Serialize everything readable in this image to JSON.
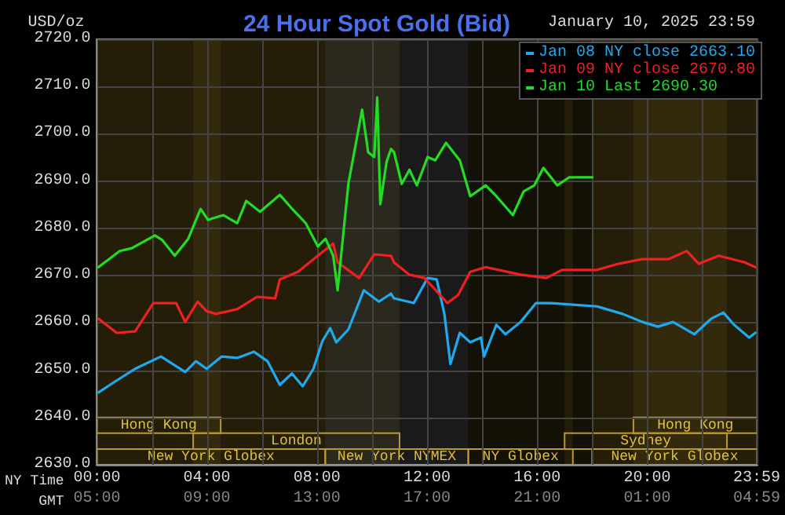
{
  "chart_data": {
    "type": "line",
    "title": "24 Hour Spot Gold (Bid)",
    "subtitle": "January 10, 2025 23:59",
    "ylabel": "USD/oz",
    "xlabel": "NY Time",
    "x2label": "GMT",
    "xlim": [
      0,
      24
    ],
    "xticks": [
      {
        "value": 0,
        "label": "00:00"
      },
      {
        "value": 2,
        "label": null
      },
      {
        "value": 4,
        "label": "04:00"
      },
      {
        "value": 6,
        "label": null
      },
      {
        "value": 8,
        "label": "08:00"
      },
      {
        "value": 10,
        "label": null
      },
      {
        "value": 12,
        "label": "12:00"
      },
      {
        "value": 14,
        "label": null
      },
      {
        "value": 16,
        "label": "16:00"
      },
      {
        "value": 18,
        "label": null
      },
      {
        "value": 20,
        "label": "20:00"
      },
      {
        "value": 22,
        "label": null
      },
      {
        "value": 23.98,
        "label": "23:59"
      }
    ],
    "x2lim": [
      "2025-01-10T05:00",
      "2025-01-11T05:00"
    ],
    "x2ticks": [
      {
        "value": "2025-01-10T05:00",
        "label": "05:00"
      },
      {
        "value": "2025-01-10T09:00",
        "label": "09:00"
      },
      {
        "value": "2025-01-10T13:00",
        "label": "13:00"
      },
      {
        "value": "2025-01-10T17:00",
        "label": "17:00"
      },
      {
        "value": "2025-01-10T21:00",
        "label": "21:00"
      },
      {
        "value": "2025-01-11T01:00",
        "label": "01:00"
      },
      {
        "value": "2025-01-11T04:59",
        "label": "04:59"
      }
    ],
    "ylim": [
      2630,
      2720
    ],
    "yticks": [
      {
        "value": 2630,
        "label": "2630.0"
      },
      {
        "value": 2640,
        "label": "2640.0"
      },
      {
        "value": 2650,
        "label": "2650.0"
      },
      {
        "value": 2660,
        "label": "2660.0"
      },
      {
        "value": 2670,
        "label": "2670.0"
      },
      {
        "value": 2680,
        "label": "2680.0"
      },
      {
        "value": 2690,
        "label": "2690.0"
      },
      {
        "value": 2700,
        "label": "2700.0"
      },
      {
        "value": 2710,
        "label": "2710.0"
      },
      {
        "value": 2720,
        "label": "2720.0"
      }
    ],
    "grid": true,
    "legend": "top right",
    "marker": "none",
    "line_style": "solid",
    "bands": [
      {
        "axis": "x",
        "from": 0,
        "to": 8.3,
        "label": "New York Globex",
        "color": "#b89a30"
      },
      {
        "axis": "x",
        "from": 13.5,
        "to": 17.3,
        "label": "NY Globex",
        "color": "#b89a30"
      },
      {
        "axis": "x",
        "from": 18,
        "to": 24,
        "label": "New York Globex",
        "color": "#b89a30"
      },
      {
        "axis": "x",
        "from": 3.5,
        "to": 11,
        "label": "London",
        "color": "#b89a30"
      },
      {
        "axis": "x",
        "from": 17,
        "to": 22.9,
        "label": "Sydney",
        "color": "#b89a30"
      },
      {
        "axis": "x",
        "from": 0,
        "to": 4.5,
        "label": "Hong Kong",
        "color": "#b89a30"
      },
      {
        "axis": "x",
        "from": 19.5,
        "to": 24,
        "label": "Hong Kong",
        "color": "#b89a30"
      },
      {
        "axis": "x",
        "from": 8.3,
        "to": 13.5,
        "label": "New York NYMEX",
        "color": "#ffffff"
      }
    ],
    "series": [
      {
        "name": "Jan 08 NY close 2663.10",
        "color": "#20aaee",
        "x": [
          0.06,
          0.66,
          1.39,
          2.33,
          3.21,
          3.6,
          3.99,
          4.54,
          5.1,
          5.71,
          6.2,
          6.65,
          7.09,
          7.48,
          7.87,
          8.2,
          8.48,
          8.7,
          9.14,
          9.7,
          10.25,
          10.69,
          10.8,
          11.52,
          12.02,
          12.35,
          12.63,
          12.85,
          13.19,
          13.57,
          13.96,
          14.07,
          14.52,
          14.85,
          15.4,
          15.96,
          16.51,
          18.17,
          19.11,
          19.83,
          20.39,
          20.94,
          21.72,
          22.33,
          22.77,
          23.16,
          23.71,
          23.93
        ],
        "values": [
          2645.3,
          2647.6,
          2650.3,
          2652.9,
          2649.6,
          2651.9,
          2650.3,
          2652.9,
          2652.6,
          2653.9,
          2651.9,
          2646.9,
          2649.3,
          2646.6,
          2650.3,
          2656.2,
          2658.9,
          2655.9,
          2658.6,
          2666.9,
          2664.5,
          2666.2,
          2665.2,
          2664.2,
          2669.5,
          2669.2,
          2661.9,
          2651.3,
          2657.9,
          2655.9,
          2656.9,
          2652.9,
          2659.6,
          2657.6,
          2660.2,
          2664.2,
          2664.2,
          2663.5,
          2661.9,
          2660.2,
          2659.2,
          2660.2,
          2657.6,
          2660.9,
          2662.2,
          2659.6,
          2656.9,
          2657.9
        ]
      },
      {
        "name": "Jan 09 NY close 2670.80",
        "color": "#ee2020",
        "x": [
          0.06,
          0.72,
          1.39,
          2.05,
          2.88,
          3.21,
          3.66,
          3.99,
          4.32,
          5.1,
          5.82,
          6.48,
          6.65,
          7.31,
          8.03,
          8.59,
          8.75,
          9.53,
          10.08,
          10.69,
          10.8,
          11.36,
          11.91,
          12.74,
          13.13,
          13.57,
          14.13,
          15.4,
          16.34,
          16.9,
          18.17,
          18.95,
          19.83,
          20.78,
          21.44,
          21.88,
          22.6,
          23.55,
          23.93
        ],
        "values": [
          2660.9,
          2657.9,
          2658.2,
          2664.2,
          2664.2,
          2660.2,
          2664.5,
          2662.5,
          2661.9,
          2662.9,
          2665.5,
          2665.2,
          2669.2,
          2670.8,
          2674.2,
          2676.8,
          2672.8,
          2669.5,
          2674.5,
          2674.2,
          2672.8,
          2670.2,
          2669.5,
          2664.2,
          2665.9,
          2670.8,
          2671.8,
          2670.2,
          2669.5,
          2671.2,
          2671.2,
          2672.5,
          2673.5,
          2673.5,
          2675.2,
          2672.5,
          2674.2,
          2672.8,
          2671.8
        ]
      },
      {
        "name": "Jan 10 Last 2690.30",
        "color": "#22dd22",
        "x": [
          0.06,
          0.83,
          1.27,
          2.11,
          2.38,
          2.83,
          3.32,
          3.77,
          4.04,
          4.6,
          5.1,
          5.43,
          5.93,
          6.65,
          7.04,
          7.59,
          8.03,
          8.31,
          8.59,
          8.75,
          9.14,
          9.64,
          9.86,
          10.08,
          10.19,
          10.3,
          10.53,
          10.69,
          10.8,
          11.08,
          11.36,
          11.63,
          12.02,
          12.3,
          12.69,
          13.19,
          13.57,
          14.13,
          14.52,
          15.12,
          15.51,
          15.9,
          16.23,
          16.73,
          17.17,
          18.01
        ],
        "values": [
          2671.8,
          2675.2,
          2675.8,
          2678.5,
          2677.5,
          2674.2,
          2677.8,
          2684.1,
          2681.8,
          2682.8,
          2681.1,
          2685.8,
          2683.5,
          2687.1,
          2684.5,
          2681.1,
          2676.2,
          2677.8,
          2674.2,
          2666.9,
          2689.4,
          2705.1,
          2696.1,
          2695.1,
          2707.7,
          2685.1,
          2694.1,
          2696.8,
          2696.1,
          2689.4,
          2692.4,
          2689.1,
          2695.1,
          2694.4,
          2698.1,
          2694.4,
          2686.8,
          2689.1,
          2686.8,
          2682.8,
          2687.8,
          2689.1,
          2692.8,
          2689.1,
          2690.8,
          2690.8
        ]
      }
    ]
  }
}
